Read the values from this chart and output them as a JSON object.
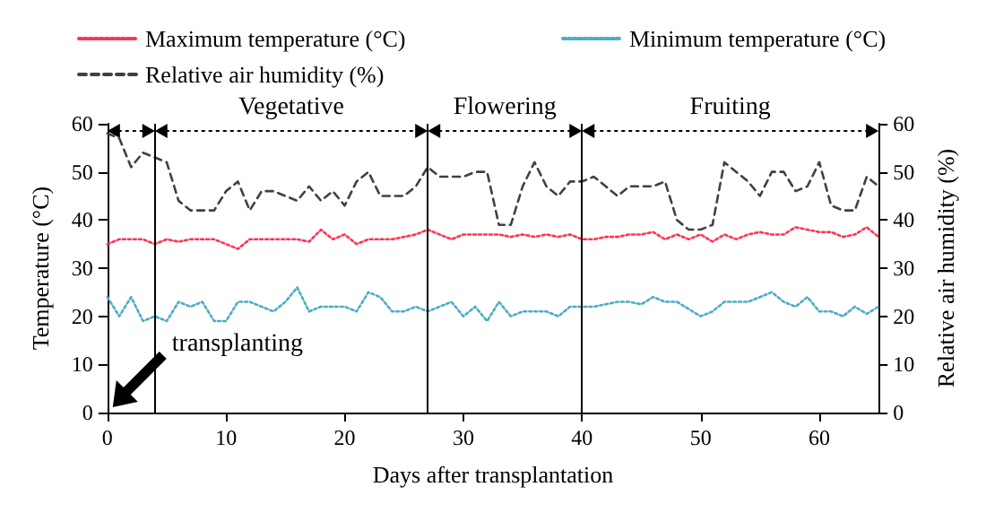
{
  "chart_data": {
    "type": "line",
    "xlabel": "Days after transplantation",
    "ylabel": "Temperature (°C)",
    "y2label": "Relative air humidity (%)",
    "x": [
      0,
      1,
      2,
      3,
      4,
      5,
      6,
      7,
      8,
      9,
      10,
      11,
      12,
      13,
      14,
      15,
      16,
      17,
      18,
      19,
      20,
      21,
      22,
      23,
      24,
      25,
      26,
      27,
      28,
      29,
      30,
      31,
      32,
      33,
      34,
      35,
      36,
      37,
      38,
      39,
      40,
      41,
      42,
      43,
      44,
      45,
      46,
      47,
      48,
      49,
      50,
      51,
      52,
      53,
      54,
      55,
      56,
      57,
      58,
      59,
      60,
      61,
      62,
      63,
      64,
      65
    ],
    "series": [
      {
        "name": "Maximum temperature (°C)",
        "color": "#ff3355",
        "line_style": "dotted",
        "values": [
          35,
          36,
          36,
          36,
          35,
          36,
          35.5,
          36,
          36,
          36,
          35,
          34,
          36,
          36,
          36,
          36,
          36,
          35.5,
          38,
          36,
          37,
          35,
          36,
          36,
          36,
          36.5,
          37,
          38,
          37,
          36,
          37,
          37,
          37,
          37,
          36.5,
          37,
          36.5,
          37,
          36.5,
          37,
          36,
          36,
          36.5,
          36.5,
          37,
          37,
          37.5,
          36,
          37,
          36,
          37,
          35.5,
          37,
          36,
          37,
          37.5,
          37,
          37,
          38.5,
          38,
          37.5,
          37.5,
          36.5,
          37,
          38.5,
          36.5
        ]
      },
      {
        "name": "Minimum temperature (°C)",
        "color": "#4bacc6",
        "line_style": "dotted",
        "values": [
          24,
          20,
          24,
          19,
          20,
          19,
          23,
          22,
          23,
          19,
          19,
          23,
          23,
          22,
          21,
          23,
          26,
          21,
          22,
          22,
          22,
          21,
          25,
          24,
          21,
          21,
          22,
          21,
          22,
          23,
          20,
          22,
          19,
          23,
          20,
          21,
          21,
          21,
          20,
          22,
          22,
          22,
          22.5,
          23,
          23,
          22.5,
          24,
          23,
          23,
          21.5,
          20,
          21,
          23,
          23,
          23,
          24,
          25,
          23,
          22,
          24,
          21,
          21,
          20,
          22,
          20.5,
          22
        ]
      },
      {
        "name": "Relative air humidity (%)",
        "color": "#404040",
        "line_style": "dashed",
        "axis": "y2",
        "values": [
          58,
          57,
          51,
          54,
          53,
          52,
          44,
          42,
          42,
          42,
          46,
          48,
          42,
          46,
          46,
          45,
          44,
          47,
          44,
          46,
          43,
          48,
          50,
          45,
          45,
          45,
          47,
          51,
          49,
          49,
          49,
          50,
          50,
          39,
          39,
          47,
          52,
          47,
          45,
          48,
          48,
          49,
          47,
          45,
          47,
          47,
          47,
          48,
          40,
          38,
          38,
          39,
          52,
          50,
          48,
          45,
          50,
          50,
          46,
          47,
          52,
          43,
          42,
          42,
          49,
          47
        ]
      }
    ],
    "xlim": [
      0,
      65
    ],
    "xticks": [
      0,
      10,
      20,
      30,
      40,
      50,
      60
    ],
    "ylim": [
      0,
      60
    ],
    "yticks": [
      0,
      10,
      20,
      30,
      40,
      50,
      60
    ],
    "y2lim": [
      0,
      60
    ],
    "y2ticks": [
      0,
      10,
      20,
      30,
      40,
      50,
      60
    ],
    "ref_lines": [
      {
        "axis": "x",
        "value": 4,
        "color": "#000000"
      },
      {
        "axis": "x",
        "value": 27,
        "color": "#000000"
      },
      {
        "axis": "x",
        "value": 40,
        "color": "#000000"
      }
    ],
    "annotations": [
      "Vegetative",
      "Flowering",
      "Fruiting",
      "transplanting"
    ],
    "legend": "top",
    "grid": false,
    "marker": "none"
  }
}
